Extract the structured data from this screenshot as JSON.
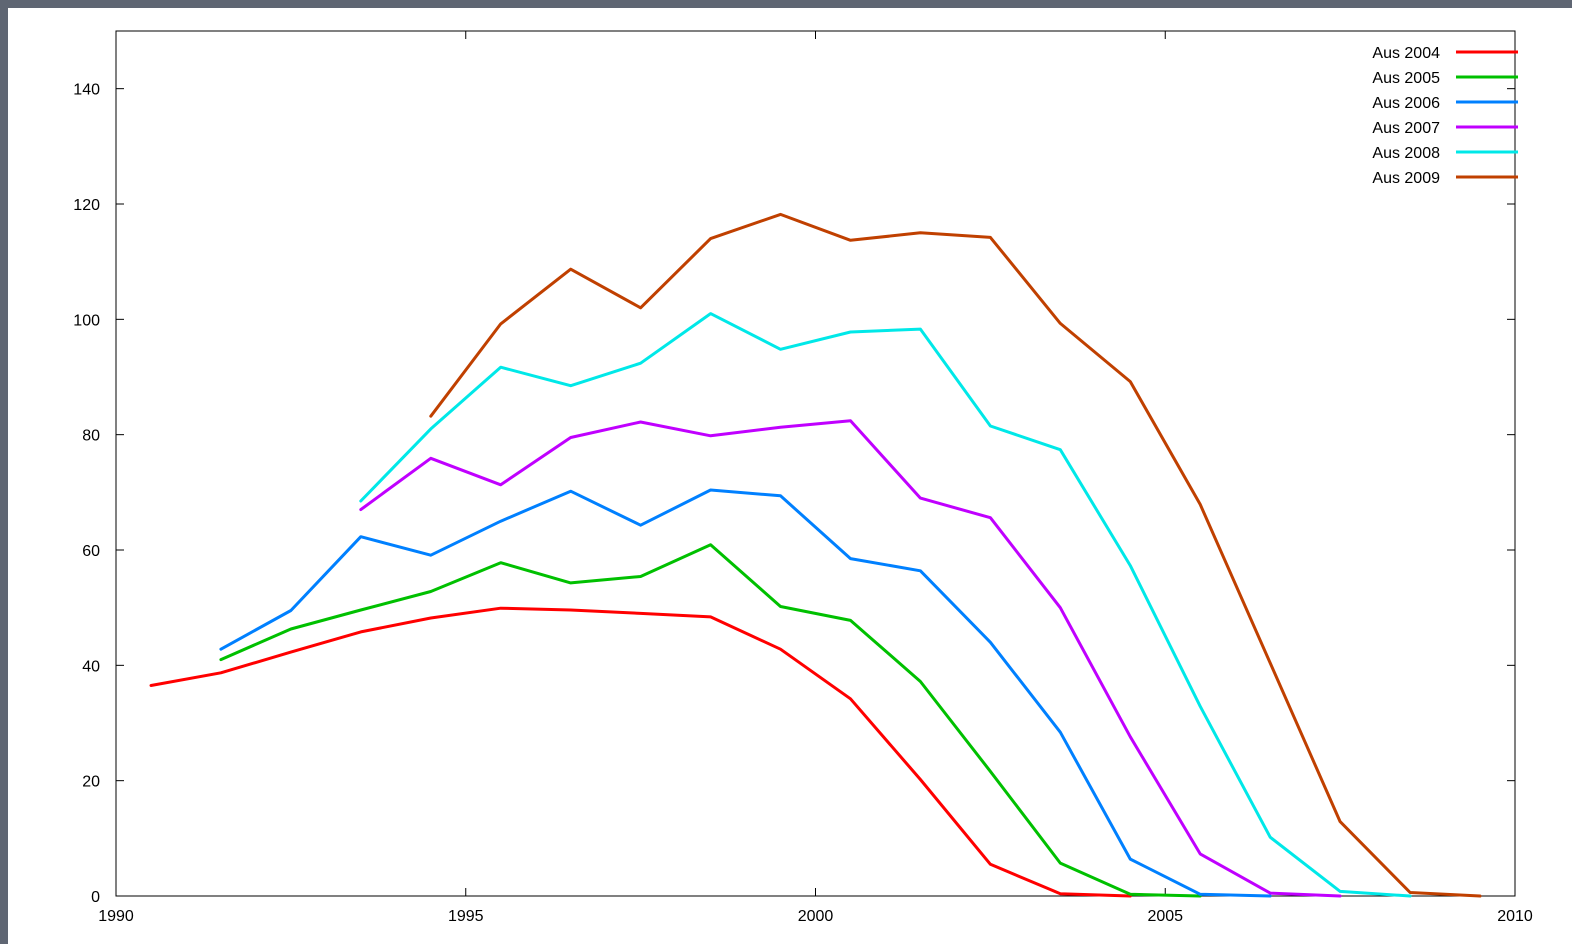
{
  "chart_data": {
    "type": "line",
    "title": "",
    "xlabel": "",
    "ylabel": "",
    "xlim": [
      1990,
      2010
    ],
    "ylim": [
      0,
      150
    ],
    "x_ticks": [
      1990,
      1995,
      2000,
      2005,
      2010
    ],
    "y_ticks": [
      0,
      20,
      40,
      60,
      80,
      100,
      120,
      140
    ],
    "grid": false,
    "legend_position": "top-right",
    "series": [
      {
        "name": "Aus 2004",
        "color": "#ff0000",
        "points": [
          [
            1990.5,
            36.5
          ],
          [
            1991.5,
            38.7
          ],
          [
            1992.5,
            42.3
          ],
          [
            1993.5,
            45.8
          ],
          [
            1994.5,
            48.2
          ],
          [
            1995.5,
            49.9
          ],
          [
            1996.5,
            49.6
          ],
          [
            1997.5,
            49.0
          ],
          [
            1998.5,
            48.4
          ],
          [
            1999.5,
            42.8
          ],
          [
            2000.5,
            34.2
          ],
          [
            2001.5,
            20.2
          ],
          [
            2002.5,
            5.5
          ],
          [
            2003.5,
            0.4
          ],
          [
            2004.5,
            0.0
          ]
        ]
      },
      {
        "name": "Aus 2005",
        "color": "#00c000",
        "points": [
          [
            1991.5,
            41.0
          ],
          [
            1992.5,
            46.3
          ],
          [
            1993.5,
            49.6
          ],
          [
            1994.5,
            52.8
          ],
          [
            1995.5,
            57.8
          ],
          [
            1996.5,
            54.3
          ],
          [
            1997.5,
            55.4
          ],
          [
            1998.5,
            60.9
          ],
          [
            1999.5,
            50.2
          ],
          [
            2000.5,
            47.8
          ],
          [
            2001.5,
            37.2
          ],
          [
            2002.5,
            21.6
          ],
          [
            2003.5,
            5.7
          ],
          [
            2004.5,
            0.3
          ],
          [
            2005.5,
            0.0
          ]
        ]
      },
      {
        "name": "Aus 2006",
        "color": "#0080ff",
        "points": [
          [
            1991.5,
            42.8
          ],
          [
            1992.5,
            49.5
          ],
          [
            1993.5,
            62.3
          ],
          [
            1994.5,
            59.1
          ],
          [
            1995.5,
            65.0
          ],
          [
            1996.5,
            70.2
          ],
          [
            1997.5,
            64.3
          ],
          [
            1998.5,
            70.4
          ],
          [
            1999.5,
            69.4
          ],
          [
            2000.5,
            58.5
          ],
          [
            2001.5,
            56.4
          ],
          [
            2002.5,
            44.0
          ],
          [
            2003.5,
            28.4
          ],
          [
            2004.5,
            6.4
          ],
          [
            2005.5,
            0.3
          ],
          [
            2006.5,
            0.0
          ]
        ]
      },
      {
        "name": "Aus 2007",
        "color": "#c000ff",
        "points": [
          [
            1993.5,
            67.0
          ],
          [
            1994.5,
            75.9
          ],
          [
            1995.5,
            71.3
          ],
          [
            1996.5,
            79.5
          ],
          [
            1997.5,
            82.2
          ],
          [
            1998.5,
            79.8
          ],
          [
            1999.5,
            81.3
          ],
          [
            2000.5,
            82.4
          ],
          [
            2001.5,
            69.0
          ],
          [
            2002.5,
            65.6
          ],
          [
            2003.5,
            50.0
          ],
          [
            2004.5,
            27.6
          ],
          [
            2005.5,
            7.3
          ],
          [
            2006.5,
            0.5
          ],
          [
            2007.5,
            0.0
          ]
        ]
      },
      {
        "name": "Aus 2008",
        "color": "#00e8e8",
        "points": [
          [
            1993.5,
            68.5
          ],
          [
            1994.5,
            81.0
          ],
          [
            1995.5,
            91.7
          ],
          [
            1996.5,
            88.5
          ],
          [
            1997.5,
            92.4
          ],
          [
            1998.5,
            101.0
          ],
          [
            1999.5,
            94.8
          ],
          [
            2000.5,
            97.8
          ],
          [
            2001.5,
            98.3
          ],
          [
            2002.5,
            81.5
          ],
          [
            2003.5,
            77.4
          ],
          [
            2004.5,
            57.3
          ],
          [
            2005.5,
            32.9
          ],
          [
            2006.5,
            10.2
          ],
          [
            2007.5,
            0.8
          ],
          [
            2008.5,
            0.0
          ]
        ]
      },
      {
        "name": "Aus 2009",
        "color": "#c04000",
        "points": [
          [
            1994.5,
            83.2
          ],
          [
            1995.5,
            99.2
          ],
          [
            1996.5,
            108.7
          ],
          [
            1997.5,
            102.0
          ],
          [
            1998.5,
            114.0
          ],
          [
            1999.5,
            118.2
          ],
          [
            2000.5,
            113.7
          ],
          [
            2001.5,
            115.0
          ],
          [
            2002.5,
            114.2
          ],
          [
            2003.5,
            99.3
          ],
          [
            2004.5,
            89.2
          ],
          [
            2005.5,
            67.9
          ],
          [
            2006.5,
            40.4
          ],
          [
            2007.5,
            12.9
          ],
          [
            2008.5,
            0.6
          ],
          [
            2009.5,
            0.0
          ]
        ]
      }
    ]
  }
}
